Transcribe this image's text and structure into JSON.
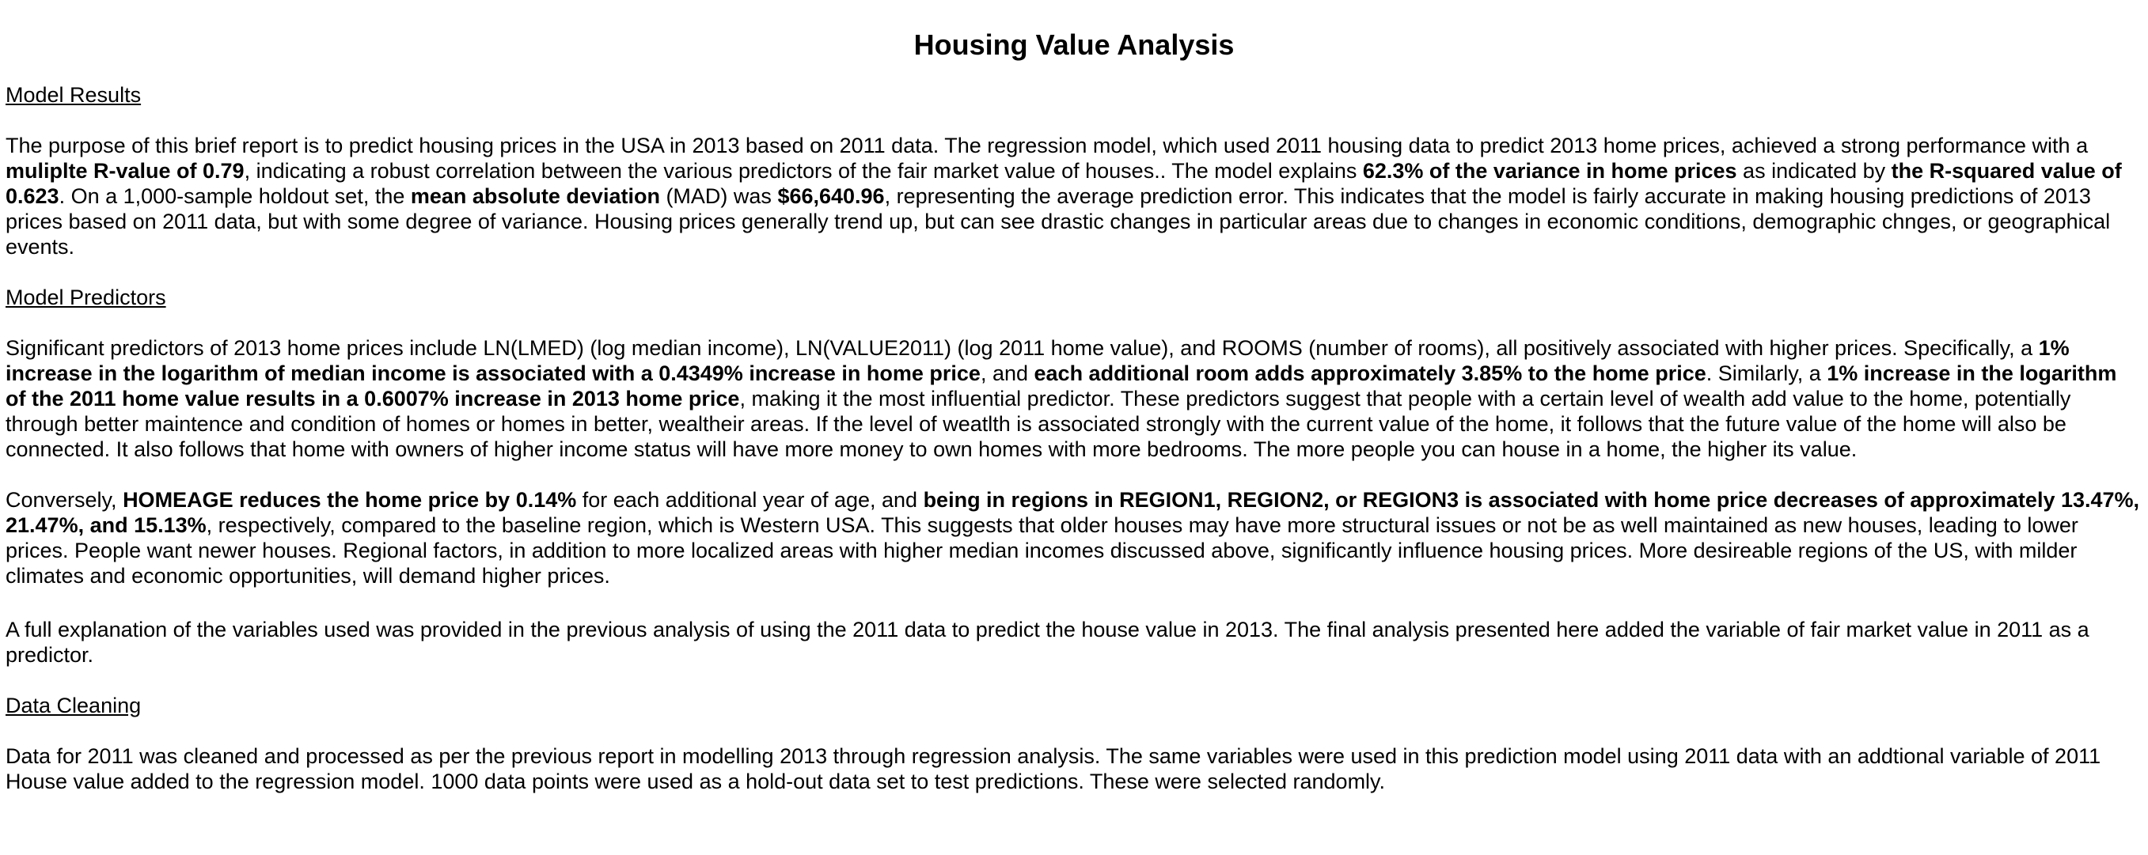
{
  "document": {
    "title": "Housing Value Analysis",
    "sections": {
      "model_results": {
        "heading": "Model Results",
        "p1": [
          "The purpose of this brief report is to predict housing prices in the USA in 2013 based on 2011 data. The regression model, which used 2011 housing data to predict 2013 home prices, achieved a strong performance with a ",
          "muliplte R-value of 0.79",
          ", indicating a robust correlation between the various predictors of the fair market value of houses.. The model explains ",
          "62.3% of the variance in home prices",
          " as indicated by ",
          "the R-squared value of 0.623",
          ". On a 1,000-sample holdout set, the ",
          "mean absolute deviation",
          " (MAD) was ",
          "$66,640.96",
          ", representing the average prediction error. This indicates that the model is fairly accurate in making housing predictions of 2013 prices based on 2011 data, but with some degree of variance. Housing prices generally trend up, but can see drastic changes in particular areas due to changes in economic conditions, demographic chnges, or geographical events."
        ]
      },
      "model_predictors": {
        "heading": "Model Predictors",
        "p1": [
          "Significant predictors of 2013 home prices include LN(LMED) (log median income), LN(VALUE2011) (log 2011 home value), and ROOMS (number of rooms), all positively associated with higher prices. Specifically, a ",
          "1% increase in the logarithm of median income is associated with a 0.4349% increase in home price",
          ", and ",
          "each additional room adds approximately 3.85% to the home price",
          ". Similarly, a ",
          "1% increase in the logarithm of the 2011 home value results in a 0.6007% increase in 2013 home price",
          ", making it the most influential predictor. These predictors suggest that people with a certain level of wealth add value to the home, potentially through better maintence and condition of homes or homes in better, wealtheir areas. If the level of weatlth is associated strongly with the current value of the home, it follows that the future value of the home will also be connected. It also follows that home with owners of higher income status will have more money to own homes with more bedrooms. The more people you can house in a home, the higher its value."
        ],
        "p2": [
          "Conversely, ",
          "HOMEAGE reduces the home price by 0.14%",
          " for each additional year of age, and ",
          "being in regions in REGION1, REGION2, or REGION3 is associated with home price decreases of approximately 13.47%, 21.47%, and 15.13%",
          ", respectively, compared to the baseline region, which is Western USA. This suggests that older houses may have more structural issues or not be as well maintained as new houses, leading to lower prices. People want newer houses. Regional factors, in addition to more localized areas with higher median incomes discussed above, significantly influence housing prices. More desireable regions of the US, with milder climates and economic opportunities, will demand higher prices."
        ],
        "p3": "A full explanation of the variables used was provided in the previous analysis of using the 2011 data to predict the house value in 2013. The final analysis presented here added the variable of fair market value in 2011 as a predictor."
      },
      "data_cleaning": {
        "heading": "Data Cleaning",
        "p1": "Data for 2011 was cleaned and processed as per the previous report in modelling 2013 through regression analysis. The same variables were used in this prediction model using 2011 data with an addtional variable of 2011 House value added to the regression model. 1000 data points were used as a hold-out data set to test predictions. These were selected randomly."
      }
    }
  }
}
